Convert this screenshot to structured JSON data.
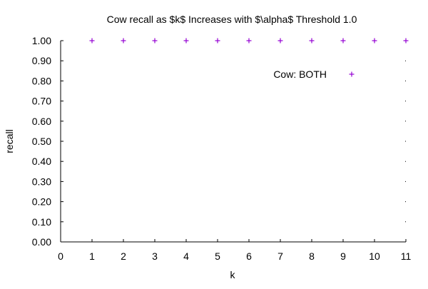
{
  "chart_data": {
    "type": "scatter",
    "title": "Cow recall as $k$ Increases with $\\alpha$ Threshold 1.0",
    "xlabel": "k",
    "ylabel": "recall",
    "xlim": [
      0,
      11
    ],
    "ylim": [
      0,
      1
    ],
    "x_ticks": [
      "0",
      "1",
      "2",
      "3",
      "4",
      "5",
      "6",
      "7",
      "8",
      "9",
      "10",
      "11"
    ],
    "y_ticks": [
      "0.00",
      "0.10",
      "0.20",
      "0.30",
      "0.40",
      "0.50",
      "0.60",
      "0.70",
      "0.80",
      "0.90",
      "1.00"
    ],
    "grid": false,
    "legend_position": "top-right",
    "series": [
      {
        "name": "Cow: BOTH",
        "marker": "plus",
        "color": "#9400d3",
        "x": [
          1,
          2,
          3,
          4,
          5,
          6,
          7,
          8,
          9,
          10,
          11
        ],
        "y": [
          1.0,
          1.0,
          1.0,
          1.0,
          1.0,
          1.0,
          1.0,
          1.0,
          1.0,
          1.0,
          1.0
        ]
      }
    ]
  }
}
